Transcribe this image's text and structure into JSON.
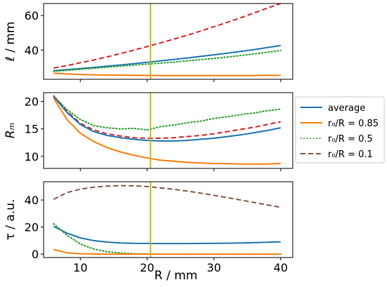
{
  "figure": {
    "xlabel": "R / mm",
    "vline_x": 20.5,
    "vline_color": "#bcbd22"
  },
  "legend": {
    "entries": [
      {
        "label": "average",
        "color": "#1f77b4",
        "dash": "solid"
      },
      {
        "label": "r₀/R = 0.85",
        "color": "#ff7f0e",
        "dash": "solid"
      },
      {
        "label": "r₀/R = 0.5",
        "color": "#2ca02c",
        "dash": "dotted"
      },
      {
        "label": "r₀/R = 0.1",
        "color": "#8c564b",
        "dash": "dashed"
      }
    ]
  },
  "chart_data": [
    {
      "type": "line",
      "panel": "top",
      "ylabel": "ℓ / mm",
      "xlim": [
        4.5,
        41.8
      ],
      "ylim": [
        23,
        67
      ],
      "xticks": [
        10,
        20,
        30,
        40
      ],
      "yticks": [
        40,
        60
      ],
      "x": [
        6,
        8,
        10,
        12,
        14,
        16,
        18,
        20,
        22,
        24,
        26,
        28,
        30,
        32,
        34,
        36,
        38,
        40
      ],
      "series": [
        {
          "color": "#d62728",
          "dash": "dashed",
          "values": [
            29.5,
            31.0,
            32.6,
            34.2,
            36.0,
            37.9,
            39.9,
            42.0,
            44.1,
            46.3,
            48.6,
            51.0,
            53.5,
            56.1,
            58.7,
            61.5,
            64.3,
            67.0
          ]
        },
        {
          "color": "#1f77b4",
          "dash": "solid",
          "values": [
            28.0,
            28.6,
            29.2,
            29.9,
            30.6,
            31.3,
            32.1,
            32.9,
            33.7,
            34.5,
            35.4,
            36.3,
            37.2,
            38.2,
            39.2,
            40.2,
            41.4,
            42.6
          ]
        },
        {
          "color": "#2ca02c",
          "dash": "dotted",
          "values": [
            27.6,
            28.2,
            28.8,
            29.4,
            30.0,
            30.6,
            31.2,
            31.8,
            32.4,
            33.0,
            33.7,
            34.4,
            35.1,
            35.9,
            36.8,
            37.7,
            38.7,
            39.8
          ]
        },
        {
          "color": "#ff7f0e",
          "dash": "solid",
          "values": [
            26.5,
            26.1,
            25.8,
            25.6,
            25.5,
            25.4,
            25.3,
            25.2,
            25.2,
            25.2,
            25.2,
            25.2,
            25.2,
            25.2,
            25.2,
            25.2,
            25.3,
            25.3
          ]
        }
      ]
    },
    {
      "type": "line",
      "panel": "middle",
      "ylabel": "Rₘ",
      "xlim": [
        4.5,
        41.8
      ],
      "ylim": [
        7.8,
        21.6
      ],
      "xticks": [
        10,
        20,
        30,
        40
      ],
      "yticks": [
        10,
        15,
        20
      ],
      "x": [
        6,
        8,
        10,
        12,
        14,
        16,
        18,
        20,
        22,
        24,
        26,
        28,
        30,
        32,
        34,
        36,
        38,
        40
      ],
      "series": [
        {
          "color": "#2ca02c",
          "dash": "dotted",
          "values": [
            21.0,
            18.5,
            16.7,
            15.6,
            15.2,
            15.0,
            15.1,
            14.8,
            15.4,
            15.7,
            16.1,
            16.4,
            16.9,
            17.2,
            17.6,
            17.9,
            18.3,
            18.6
          ]
        },
        {
          "color": "#d62728",
          "dash": "dashed",
          "values": [
            21.0,
            18.2,
            16.0,
            14.8,
            14.1,
            13.7,
            13.4,
            13.3,
            13.3,
            13.4,
            13.6,
            13.8,
            14.1,
            14.5,
            14.9,
            15.3,
            15.8,
            16.3
          ]
        },
        {
          "color": "#1f77b4",
          "dash": "solid",
          "values": [
            20.9,
            18.0,
            15.8,
            14.5,
            13.8,
            13.4,
            13.1,
            12.9,
            12.8,
            12.8,
            12.9,
            13.1,
            13.3,
            13.6,
            13.9,
            14.3,
            14.7,
            15.2
          ]
        },
        {
          "color": "#ff7f0e",
          "dash": "solid",
          "values": [
            20.6,
            16.7,
            14.2,
            12.7,
            11.6,
            10.8,
            10.2,
            9.7,
            9.3,
            9.1,
            8.9,
            8.8,
            8.7,
            8.65,
            8.6,
            8.6,
            8.6,
            8.7
          ]
        }
      ]
    },
    {
      "type": "line",
      "panel": "bottom",
      "ylabel": "τ / a.u.",
      "xlim": [
        4.5,
        41.8
      ],
      "ylim": [
        -2.5,
        53.5
      ],
      "xticks": [
        10,
        20,
        30,
        40
      ],
      "yticks": [
        0,
        20,
        40
      ],
      "x": [
        6,
        8,
        10,
        12,
        14,
        16,
        18,
        20,
        22,
        24,
        26,
        28,
        30,
        32,
        34,
        36,
        38,
        40
      ],
      "series": [
        {
          "color": "#8c564b",
          "dash": "dashed",
          "values": [
            40.5,
            45.5,
            48.0,
            49.5,
            50.3,
            50.6,
            50.5,
            49.9,
            49.0,
            47.9,
            46.6,
            45.1,
            43.5,
            41.8,
            40.0,
            38.2,
            36.4,
            34.6
          ]
        },
        {
          "color": "#1f77b4",
          "dash": "solid",
          "values": [
            20.5,
            15.5,
            12.0,
            10.0,
            8.9,
            8.3,
            8.0,
            7.9,
            7.8,
            7.8,
            7.8,
            7.9,
            8.0,
            8.1,
            8.3,
            8.5,
            8.8,
            9.1
          ]
        },
        {
          "color": "#2ca02c",
          "dash": "dotted",
          "values": [
            22.5,
            14.0,
            7.5,
            3.8,
            1.8,
            0.8,
            0.3,
            0.1,
            0.0,
            0.0,
            0.0,
            0.0,
            0.0,
            0.0,
            0.0,
            0.0,
            0.0,
            0.0
          ]
        },
        {
          "color": "#ff7f0e",
          "dash": "solid",
          "values": [
            3.5,
            1.0,
            0.3,
            0.1,
            0.0,
            0.0,
            0.0,
            0.0,
            0.0,
            0.0,
            0.0,
            0.0,
            0.0,
            0.0,
            0.0,
            0.0,
            0.0,
            0.0
          ]
        }
      ]
    }
  ]
}
